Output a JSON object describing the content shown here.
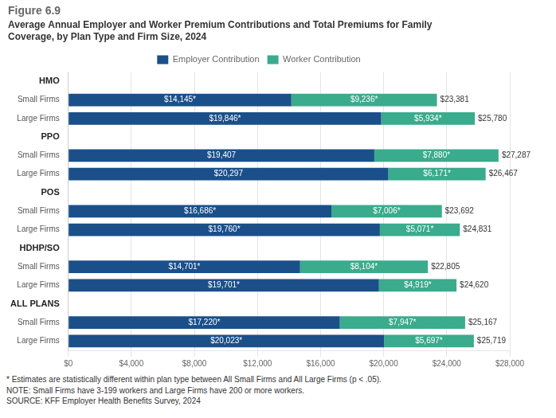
{
  "chart_data": {
    "type": "bar",
    "orientation": "horizontal",
    "stacked": true,
    "title": "Figure 6.9",
    "subtitle": "Average Annual Employer and Worker Premium Contributions and Total Premiums for Family\nCoverage, by Plan Type and Firm Size, 2024",
    "categories": [
      "HMO",
      "Small Firms",
      "Large Firms",
      "PPO",
      "Small Firms",
      "Large Firms",
      "POS",
      "Small Firms",
      "Large Firms",
      "HDHP/SO",
      "Small Firms",
      "Large Firms",
      "ALL PLANS",
      "Small Firms",
      "Large Firms"
    ],
    "series": [
      {
        "name": "Employer Contribution",
        "color": "#1a4f8a",
        "values": [
          null,
          14145,
          19846,
          null,
          19407,
          20297,
          null,
          16686,
          19760,
          null,
          14701,
          19701,
          null,
          17220,
          20023
        ],
        "value_labels": [
          null,
          "$14,145*",
          "$19,846*",
          null,
          "$19,407",
          "$20,297",
          null,
          "$16,686*",
          "$19,760*",
          null,
          "$14,701*",
          "$19,701*",
          null,
          "$17,220*",
          "$20,023*"
        ]
      },
      {
        "name": "Worker Contribution",
        "color": "#3aab8c",
        "values": [
          null,
          9236,
          5934,
          null,
          7880,
          6171,
          null,
          7006,
          5071,
          null,
          8104,
          4919,
          null,
          7947,
          5697
        ],
        "value_labels": [
          null,
          "$9,236*",
          "$5,934*",
          null,
          "$7,880*",
          "$6,171*",
          null,
          "$7,006*",
          "$5,071*",
          null,
          "$8,104*",
          "$4,919*",
          null,
          "$7,947*",
          "$5,697*"
        ]
      }
    ],
    "total_labels": [
      null,
      "$23,381",
      "$25,780",
      null,
      "$27,287",
      "$26,467",
      null,
      "$23,692",
      "$24,831",
      null,
      "$22,805",
      "$24,620",
      null,
      "$25,167",
      "$25,719"
    ],
    "data_labels": true,
    "xlim": [
      0,
      28000
    ],
    "xticks": [
      {
        "value": 0,
        "label": "$0"
      },
      {
        "value": 4000,
        "label": "$4,000"
      },
      {
        "value": 8000,
        "label": "$8,000"
      },
      {
        "value": 12000,
        "label": "$12,000"
      },
      {
        "value": 16000,
        "label": "$16,000"
      },
      {
        "value": 20000,
        "label": "$20,000"
      },
      {
        "value": 24000,
        "label": "$24,000"
      },
      {
        "value": 28000,
        "label": "$28,000"
      }
    ],
    "grid": true,
    "legend": "top",
    "annotations": [
      "* Estimates are statistically different within plan type between All Small Firms and All Large Firms (p < .05).",
      "NOTE: Small Firms have 3-199 workers and Large Firms have 200 or more workers.",
      "SOURCE: KFF Employer Health Benefits Survey, 2024"
    ]
  }
}
